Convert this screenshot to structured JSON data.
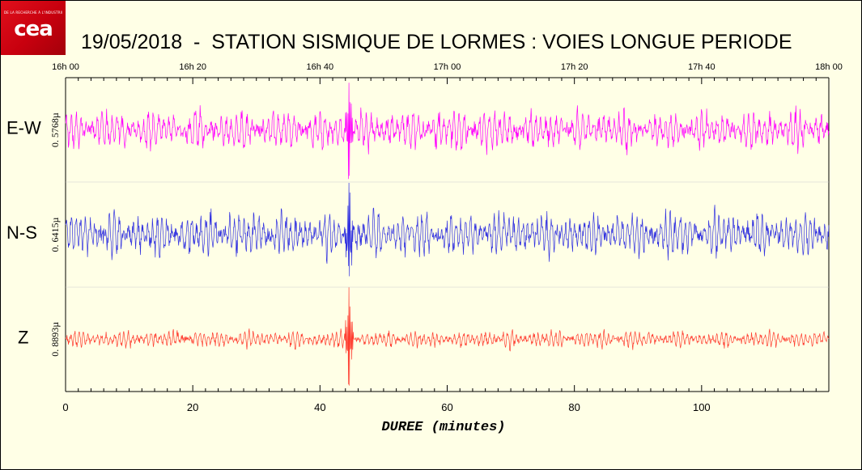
{
  "logo": {
    "text": "cea",
    "tagline": "DE LA RECHERCHE À L'INDUSTRIE"
  },
  "title": "19/05/2018  -  STATION SISMIQUE DE LORMES : VOIES LONGUE PERIODE",
  "chart_data": {
    "type": "line",
    "xlabel": "DUREE (minutes)",
    "xlim": [
      0,
      120
    ],
    "x_ticks": [
      0,
      20,
      40,
      60,
      80,
      100
    ],
    "top_axis_ticks": [
      "16h 00",
      "16h 20",
      "16h 40",
      "17h 00",
      "17h 20",
      "17h 40",
      "18h 00"
    ],
    "grid": false,
    "event_minute": 44.6,
    "series": [
      {
        "name": "E-W",
        "scale": "0. 5768µ",
        "color": "#ff00ff",
        "typical_amplitude": 0.35,
        "peak_amplitude": 1.0
      },
      {
        "name": "N-S",
        "scale": "0. 6415µ",
        "color": "#3030e0",
        "typical_amplitude": 0.4,
        "peak_amplitude": 1.0
      },
      {
        "name": "Z",
        "scale": "0. 8893µ",
        "color": "#ff3b2e",
        "typical_amplitude": 0.15,
        "peak_amplitude": 1.0
      }
    ]
  }
}
